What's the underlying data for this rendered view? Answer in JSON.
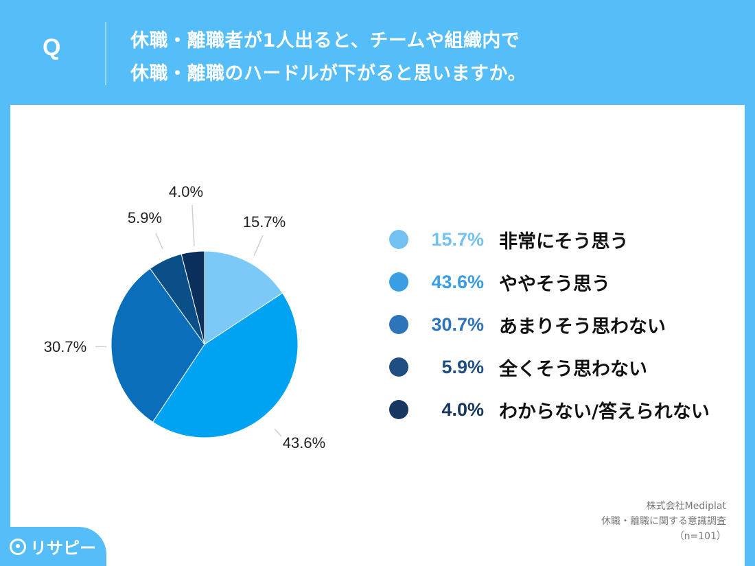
{
  "header": {
    "q_mark": "Q",
    "question_line1": "休職・離職者が1人出ると、チームや組織内で",
    "question_line2": "休職・離職のハードルが下がると思いますか。"
  },
  "chart_data": {
    "type": "pie",
    "title": "休職・離職者が1人出ると、チームや組織内で休職・離職のハードルが下がると思いますか。",
    "slices": [
      {
        "label": "非常にそう思う",
        "value": 15.7,
        "display": "15.7%",
        "color": "#7cc8f7",
        "legend_color": "#74c2f3"
      },
      {
        "label": "ややそう思う",
        "value": 43.6,
        "display": "43.6%",
        "color": "#00a3f2",
        "legend_color": "#3a9ee4"
      },
      {
        "label": "あまりそう思わない",
        "value": 30.7,
        "display": "30.7%",
        "color": "#0a6eba",
        "legend_color": "#2e74ba"
      },
      {
        "label": "全くそう思わない",
        "value": 5.9,
        "display": "5.9%",
        "color": "#0b4f89",
        "legend_color": "#1f4f82"
      },
      {
        "label": "わからない/答えられない",
        "value": 4.0,
        "display": "4.0%",
        "color": "#0b2f5c",
        "legend_color": "#173660"
      }
    ]
  },
  "legend": [
    {
      "pct": "15.7%",
      "text": "非常にそう思う"
    },
    {
      "pct": "43.6%",
      "text": "ややそう思う"
    },
    {
      "pct": "30.7%",
      "text": "あまりそう思わない"
    },
    {
      "pct": "5.9%",
      "text": "全くそう思わない"
    },
    {
      "pct": "4.0%",
      "text": "わからない/答えられない"
    }
  ],
  "credits": {
    "company": "株式会社Mediplat",
    "survey": "休職・離職に関する意識調査",
    "sample": "（n=101）"
  },
  "logo": {
    "text": "リサピー"
  }
}
